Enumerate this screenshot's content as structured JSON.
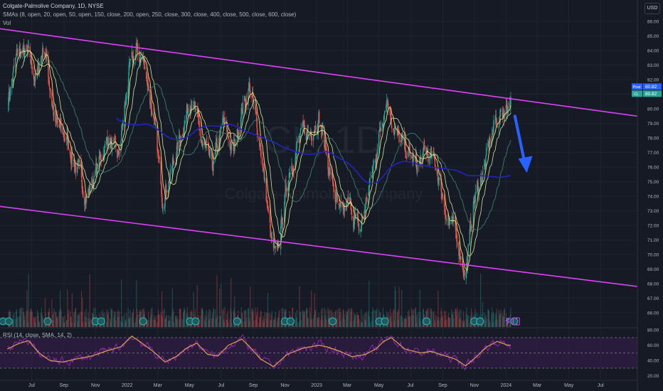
{
  "header": {
    "title": "Colgate-Palmolive Company, 1D, NYSE",
    "indicators": "SMAs (8, open, 20, open, 50, open, 150, close, 200, open, 250, close, 300, close, 400, close, 500, close, 600, close)",
    "volume": "Vol",
    "currency": "USD"
  },
  "rsi_label": "RSI (14, close, SMA, 14, 2)",
  "badges": {
    "post_label": "Post",
    "post_value": "80.82",
    "last_label": "CL",
    "last_value": "80.82"
  },
  "watermark": {
    "ticker": "CL, 1D",
    "company": "Colgate-Palmolive Company"
  },
  "colors": {
    "background": "#161a25",
    "up": "#26a69a",
    "down": "#ef5350",
    "channel": "#e040fb",
    "sma_long": "#2124c4",
    "arrow": "#2962ff",
    "rsi": "#d4a24c",
    "rsi_band": "#3a1d4f"
  },
  "chart_data": [
    {
      "type": "candlestick",
      "title": "Colgate-Palmolive Company, 1D, NYSE",
      "x_tick_labels": [
        "Jul",
        "Sep",
        "Nov",
        "2022",
        "Mar",
        "May",
        "Jul",
        "Sep",
        "Nov",
        "2023",
        "Mar",
        "May",
        "Jul",
        "Sep",
        "Nov",
        "2024",
        "Mar",
        "May",
        "Jul"
      ],
      "y_tick_labels": [
        "86.00",
        "85.00",
        "84.00",
        "83.00",
        "82.00",
        "81.00",
        "80.00",
        "79.00",
        "78.00",
        "77.00",
        "76.00",
        "75.00",
        "74.00",
        "73.00",
        "72.00",
        "71.00",
        "70.00",
        "69.00",
        "68.00",
        "67.00",
        "66.00"
      ],
      "ylim": [
        65.5,
        86.5
      ],
      "price_path": {
        "dates": [
          "2021-05-15",
          "2021-06-05",
          "2021-06-25",
          "2021-07-10",
          "2021-07-25",
          "2021-08-15",
          "2021-09-05",
          "2021-09-25",
          "2021-10-15",
          "2021-11-05",
          "2021-11-25",
          "2021-12-15",
          "2022-01-05",
          "2022-01-20",
          "2022-02-05",
          "2022-02-25",
          "2022-03-10",
          "2022-03-30",
          "2022-04-20",
          "2022-05-05",
          "2022-05-25",
          "2022-06-15",
          "2022-07-05",
          "2022-07-25",
          "2022-08-10",
          "2022-08-25",
          "2022-09-15",
          "2022-10-05",
          "2022-10-15",
          "2022-10-25",
          "2022-11-10",
          "2022-11-30",
          "2022-12-20",
          "2023-01-05",
          "2023-01-25",
          "2023-02-15",
          "2023-03-05",
          "2023-03-25",
          "2023-04-15",
          "2023-05-01",
          "2023-05-15",
          "2023-06-05",
          "2023-06-25",
          "2023-07-15",
          "2023-08-01",
          "2023-08-20",
          "2023-09-10",
          "2023-09-30",
          "2023-10-15",
          "2023-10-30",
          "2023-11-20",
          "2023-12-10",
          "2023-12-31",
          "2024-01-10"
        ],
        "close": [
          80.5,
          84.0,
          83.5,
          82.0,
          84.5,
          79.0,
          78.0,
          76.0,
          74.0,
          76.0,
          78.0,
          76.5,
          82.5,
          84.0,
          83.0,
          78.0,
          74.0,
          76.0,
          79.0,
          81.0,
          77.5,
          76.0,
          79.0,
          77.0,
          80.0,
          81.5,
          77.5,
          71.0,
          69.5,
          72.0,
          76.0,
          78.0,
          78.5,
          79.5,
          76.0,
          72.5,
          73.5,
          71.5,
          75.0,
          78.0,
          81.0,
          78.0,
          77.0,
          76.0,
          77.0,
          76.0,
          72.5,
          71.0,
          68.5,
          73.5,
          76.0,
          79.0,
          80.0,
          80.8
        ]
      },
      "channel": {
        "upper": {
          "from": {
            "date": "2021-05-01",
            "price": 85.5
          },
          "to": {
            "date": "2024-09-10",
            "price": 79.5
          }
        },
        "lower": {
          "from": {
            "date": "2021-05-01",
            "price": 73.3
          },
          "to": {
            "date": "2024-09-10",
            "price": 67.8
          }
        }
      },
      "forecast_arrow": {
        "from": {
          "date": "2024-01-18",
          "price": 79.5
        },
        "to": {
          "date": "2024-02-10",
          "price": 75.6
        }
      },
      "last_price": 80.82
    },
    {
      "type": "line",
      "title": "RSI (14, close, SMA, 14, 2)",
      "y_tick_labels": [
        "80.00",
        "60.00",
        "40.00",
        "20.00"
      ],
      "ylim": [
        15,
        82
      ],
      "bands": [
        70,
        50,
        30
      ],
      "series": [
        {
          "dates": [
            "2021-05-15",
            "2021-06-05",
            "2021-06-25",
            "2021-07-15",
            "2021-08-05",
            "2021-08-30",
            "2021-09-25",
            "2021-10-25",
            "2021-11-20",
            "2021-12-20",
            "2022-01-10",
            "2022-01-25",
            "2022-02-20",
            "2022-03-15",
            "2022-04-05",
            "2022-04-25",
            "2022-05-15",
            "2022-06-05",
            "2022-06-25",
            "2022-07-15",
            "2022-08-10",
            "2022-08-25",
            "2022-09-15",
            "2022-10-10",
            "2022-11-05",
            "2022-12-05",
            "2023-01-05",
            "2023-01-20",
            "2023-02-15",
            "2023-03-10",
            "2023-04-05",
            "2023-04-25",
            "2023-05-10",
            "2023-05-25",
            "2023-06-20",
            "2023-07-20",
            "2023-08-10",
            "2023-09-01",
            "2023-09-25",
            "2023-10-15",
            "2023-11-05",
            "2023-11-25",
            "2023-12-15",
            "2024-01-05",
            "2024-01-10"
          ],
          "values": [
            55,
            62,
            66,
            50,
            40,
            38,
            42,
            46,
            52,
            58,
            72,
            65,
            52,
            38,
            45,
            56,
            63,
            48,
            46,
            60,
            68,
            58,
            42,
            32,
            48,
            56,
            60,
            58,
            52,
            45,
            48,
            55,
            65,
            70,
            55,
            50,
            52,
            47,
            42,
            33,
            45,
            58,
            65,
            60,
            60
          ]
        }
      ]
    }
  ]
}
